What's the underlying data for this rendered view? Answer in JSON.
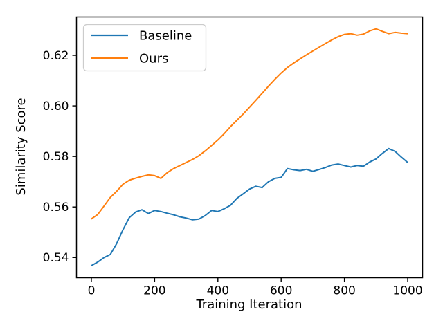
{
  "figure": {
    "background": "#ffffff",
    "spine_color": "#000000",
    "tick_color": "#000000",
    "legend_border_color": "#cccccc"
  },
  "chart_data": {
    "type": "line",
    "title": "",
    "xlabel": "Training Iteration",
    "ylabel": "Similarity Score",
    "xlim": [
      -47,
      1047
    ],
    "ylim": [
      0.532,
      0.6352
    ],
    "xticks": [
      0,
      200,
      400,
      600,
      800,
      1000
    ],
    "yticks": [
      0.54,
      0.56,
      0.58,
      0.6,
      0.62
    ],
    "grid": false,
    "legend_position": "upper left",
    "x": [
      0,
      20,
      40,
      60,
      80,
      100,
      120,
      140,
      160,
      180,
      200,
      220,
      240,
      260,
      280,
      300,
      320,
      340,
      360,
      380,
      400,
      420,
      440,
      460,
      480,
      500,
      520,
      540,
      560,
      580,
      600,
      620,
      640,
      660,
      680,
      700,
      720,
      740,
      760,
      780,
      800,
      820,
      840,
      860,
      880,
      900,
      920,
      940,
      960,
      980,
      1000
    ],
    "series": [
      {
        "name": "Baseline",
        "color": "#1f77b4",
        "values": [
          0.5368,
          0.5382,
          0.54,
          0.5412,
          0.5455,
          0.551,
          0.5558,
          0.558,
          0.5589,
          0.5574,
          0.5586,
          0.5582,
          0.5575,
          0.5569,
          0.5561,
          0.5556,
          0.5549,
          0.5552,
          0.5566,
          0.5586,
          0.5582,
          0.5593,
          0.5607,
          0.5634,
          0.5652,
          0.5671,
          0.5682,
          0.5677,
          0.57,
          0.5713,
          0.5717,
          0.5752,
          0.5747,
          0.5744,
          0.5749,
          0.5741,
          0.5748,
          0.5756,
          0.5766,
          0.577,
          0.5764,
          0.5758,
          0.5764,
          0.5761,
          0.5778,
          0.579,
          0.5812,
          0.5831,
          0.582,
          0.5797,
          0.5776
        ]
      },
      {
        "name": "Ours",
        "color": "#ff7f0e",
        "values": [
          0.5553,
          0.557,
          0.5604,
          0.5638,
          0.5662,
          0.569,
          0.5706,
          0.5714,
          0.5721,
          0.5727,
          0.5724,
          0.5713,
          0.5736,
          0.5752,
          0.5764,
          0.5776,
          0.5788,
          0.5803,
          0.5822,
          0.5843,
          0.5865,
          0.589,
          0.5918,
          0.5943,
          0.5968,
          0.5995,
          0.6022,
          0.605,
          0.6078,
          0.6105,
          0.613,
          0.6152,
          0.617,
          0.6186,
          0.6202,
          0.6217,
          0.6232,
          0.6247,
          0.6261,
          0.6274,
          0.6283,
          0.6286,
          0.628,
          0.6284,
          0.6297,
          0.6305,
          0.6295,
          0.6286,
          0.6291,
          0.6288,
          0.6286
        ]
      }
    ]
  }
}
